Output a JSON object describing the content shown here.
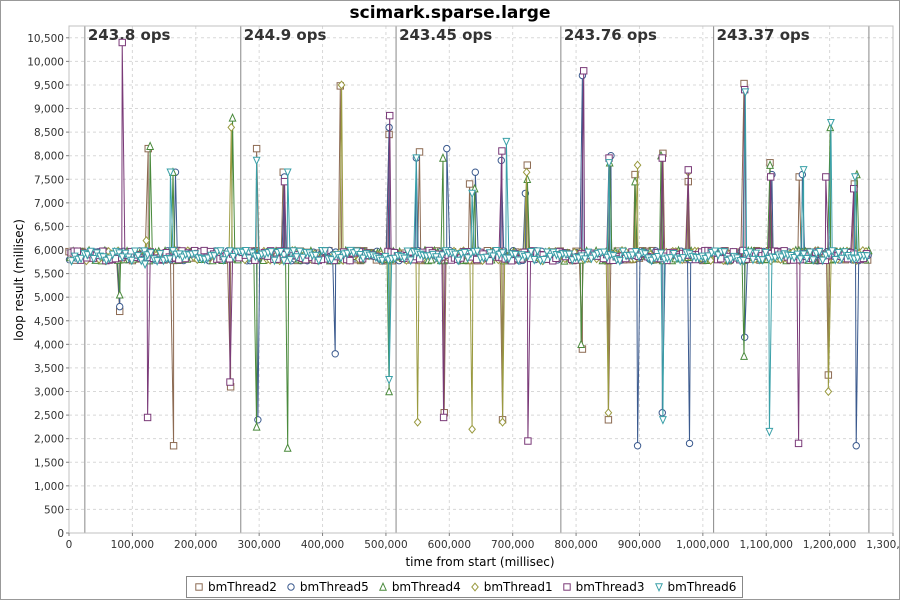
{
  "chart_data": {
    "type": "line",
    "title": "scimark.sparse.large",
    "xlabel": "time from start (millisec)",
    "ylabel": "loop result (millisec)",
    "xlim": [
      0,
      1300000
    ],
    "ylim": [
      0,
      10750
    ],
    "x_ticks": [
      0,
      100000,
      200000,
      300000,
      400000,
      500000,
      600000,
      700000,
      800000,
      900000,
      1000000,
      1100000,
      1200000,
      1300000
    ],
    "x_tick_labels": [
      "0",
      "100,000",
      "200,000",
      "300,000",
      "400,000",
      "500,000",
      "600,000",
      "700,000",
      "800,000",
      "900,000",
      "1,000,000",
      "1,100,000",
      "1,200,000",
      "1,300,000"
    ],
    "y_ticks": [
      0,
      500,
      1000,
      1500,
      2000,
      2500,
      3000,
      3500,
      4000,
      4500,
      5000,
      5500,
      6000,
      6500,
      7000,
      7500,
      8000,
      8500,
      9000,
      9500,
      10000,
      10500
    ],
    "y_tick_labels": [
      "0",
      "500",
      "1,000",
      "1,500",
      "2,000",
      "2,500",
      "3,000",
      "3,500",
      "4,000",
      "4,500",
      "5,000",
      "5,500",
      "6,000",
      "6,500",
      "7,000",
      "7,500",
      "8,000",
      "8,500",
      "9,000",
      "9,500",
      "10,000",
      "10,500"
    ],
    "grid": true,
    "legend_position": "bottom",
    "baseline": 5880,
    "sample_interval": 5000,
    "x_start": 0,
    "x_end": 1262000,
    "iterations": [
      {
        "start": 25000,
        "end": 271000,
        "label": "243.8 ops"
      },
      {
        "start": 271000,
        "end": 516000,
        "label": "244.9 ops"
      },
      {
        "start": 516000,
        "end": 776000,
        "label": "243.45 ops"
      },
      {
        "start": 776000,
        "end": 1017000,
        "label": "243.76 ops"
      },
      {
        "start": 1017000,
        "end": 1262000,
        "label": "243.37 ops"
      }
    ],
    "series": [
      {
        "name": "bmThread2",
        "color": "#8c6a52",
        "marker": "square",
        "spikes": [
          [
            80000,
            4700
          ],
          [
            125000,
            8150
          ],
          [
            165000,
            1850
          ],
          [
            255000,
            3100
          ],
          [
            296000,
            8150
          ],
          [
            338000,
            7650
          ],
          [
            428000,
            9480
          ],
          [
            505000,
            8450
          ],
          [
            553000,
            8080
          ],
          [
            592000,
            2550
          ],
          [
            632000,
            7400
          ],
          [
            684000,
            2400
          ],
          [
            723000,
            7800
          ],
          [
            810000,
            3900
          ],
          [
            851000,
            2400
          ],
          [
            893000,
            7600
          ],
          [
            937000,
            8050
          ],
          [
            977000,
            7450
          ],
          [
            1065000,
            9530
          ],
          [
            1106000,
            7850
          ],
          [
            1152000,
            7550
          ],
          [
            1198000,
            3350
          ],
          [
            1239000,
            7400
          ]
        ]
      },
      {
        "name": "bmThread5",
        "color": "#3b5a8e",
        "marker": "circle",
        "spikes": [
          [
            80000,
            4800
          ],
          [
            168000,
            7650
          ],
          [
            298000,
            2400
          ],
          [
            340000,
            7550
          ],
          [
            420000,
            3800
          ],
          [
            505000,
            8600
          ],
          [
            548000,
            7950
          ],
          [
            596000,
            8150
          ],
          [
            641000,
            7650
          ],
          [
            682000,
            7900
          ],
          [
            720000,
            7200
          ],
          [
            810000,
            9700
          ],
          [
            855000,
            8000
          ],
          [
            897000,
            1850
          ],
          [
            936000,
            2550
          ],
          [
            979000,
            1900
          ],
          [
            1066000,
            4150
          ],
          [
            1109000,
            7600
          ],
          [
            1157000,
            7600
          ],
          [
            1197000,
            5800
          ],
          [
            1242000,
            1850
          ]
        ]
      },
      {
        "name": "bmThread4",
        "color": "#4a8a3c",
        "marker": "triangle",
        "spikes": [
          [
            80000,
            5050
          ],
          [
            128000,
            8200
          ],
          [
            164000,
            7650
          ],
          [
            258000,
            8800
          ],
          [
            296000,
            2250
          ],
          [
            345000,
            1800
          ],
          [
            505000,
            3000
          ],
          [
            590000,
            7950
          ],
          [
            640000,
            7300
          ],
          [
            723000,
            7500
          ],
          [
            808000,
            4000
          ],
          [
            853000,
            7850
          ],
          [
            893000,
            7450
          ],
          [
            934000,
            8000
          ],
          [
            1065000,
            3750
          ],
          [
            1106000,
            7800
          ],
          [
            1201000,
            8600
          ],
          [
            1243000,
            7600
          ]
        ]
      },
      {
        "name": "bmThread1",
        "color": "#9a9a40",
        "marker": "diamond",
        "spikes": [
          [
            122000,
            6200
          ],
          [
            256000,
            8600
          ],
          [
            430000,
            9500
          ],
          [
            550000,
            2350
          ],
          [
            636000,
            2200
          ],
          [
            684000,
            2350
          ],
          [
            722000,
            7650
          ],
          [
            851000,
            2550
          ],
          [
            897000,
            7800
          ],
          [
            977000,
            7650
          ],
          [
            1198000,
            3000
          ]
        ]
      },
      {
        "name": "bmThread3",
        "color": "#7a3a78",
        "marker": "square",
        "spikes": [
          [
            84000,
            10400
          ],
          [
            124000,
            2450
          ],
          [
            254000,
            3200
          ],
          [
            340000,
            7450
          ],
          [
            506000,
            8850
          ],
          [
            591000,
            2450
          ],
          [
            683000,
            8100
          ],
          [
            724000,
            1950
          ],
          [
            812000,
            9800
          ],
          [
            852000,
            7950
          ],
          [
            936000,
            7950
          ],
          [
            977000,
            7700
          ],
          [
            1066000,
            9400
          ],
          [
            1107000,
            7550
          ],
          [
            1151000,
            1900
          ],
          [
            1194000,
            7550
          ],
          [
            1238000,
            7300
          ]
        ]
      },
      {
        "name": "bmThread6",
        "color": "#3aa0a8",
        "marker": "triangle-down",
        "spikes": [
          [
            120000,
            5700
          ],
          [
            160000,
            7650
          ],
          [
            296000,
            7900
          ],
          [
            345000,
            7650
          ],
          [
            505000,
            3250
          ],
          [
            548000,
            7950
          ],
          [
            636000,
            7200
          ],
          [
            690000,
            8300
          ],
          [
            852000,
            7850
          ],
          [
            937000,
            2400
          ],
          [
            1067000,
            9350
          ],
          [
            1105000,
            2150
          ],
          [
            1159000,
            7700
          ],
          [
            1202000,
            8700
          ],
          [
            1240000,
            7550
          ]
        ]
      }
    ]
  }
}
